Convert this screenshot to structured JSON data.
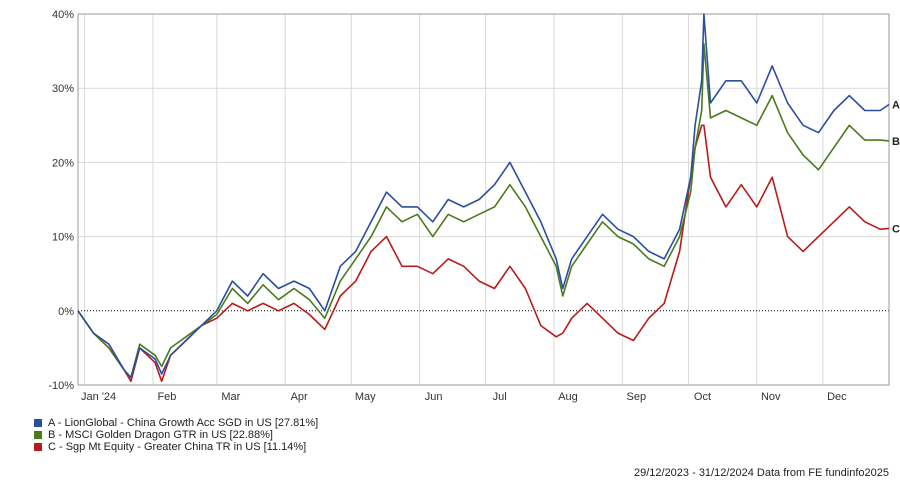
{
  "chart_data": {
    "type": "line",
    "y_tick_labels": [
      "40%",
      "30%",
      "20%",
      "10%",
      "0%",
      "-10%"
    ],
    "y_ticks": [
      40,
      30,
      20,
      10,
      0,
      -10
    ],
    "ylim": [
      -10,
      40
    ],
    "x_tick_labels": [
      "Jan '24",
      "Feb",
      "Mar",
      "Apr",
      "May",
      "Jun",
      "Jul",
      "Aug",
      "Sep",
      "Oct",
      "Nov",
      "Dec"
    ],
    "x_ticks": [
      "2024-01-01",
      "2024-02-01",
      "2024-03-01",
      "2024-04-01",
      "2024-05-01",
      "2024-06-01",
      "2024-07-01",
      "2024-08-01",
      "2024-09-01",
      "2024-10-01",
      "2024-11-01",
      "2024-12-01"
    ],
    "xlim": [
      "2023-12-29",
      "2024-12-31"
    ],
    "grid": true,
    "zero_line": "dotted",
    "legend_position": "bottom-left",
    "x": [
      "2023-12-29",
      "2024-01-05",
      "2024-01-12",
      "2024-01-19",
      "2024-01-22",
      "2024-01-26",
      "2024-02-02",
      "2024-02-05",
      "2024-02-09",
      "2024-02-16",
      "2024-02-23",
      "2024-03-01",
      "2024-03-08",
      "2024-03-15",
      "2024-03-22",
      "2024-03-29",
      "2024-04-05",
      "2024-04-12",
      "2024-04-19",
      "2024-04-26",
      "2024-05-03",
      "2024-05-10",
      "2024-05-17",
      "2024-05-24",
      "2024-05-31",
      "2024-06-07",
      "2024-06-14",
      "2024-06-21",
      "2024-06-28",
      "2024-07-05",
      "2024-07-12",
      "2024-07-19",
      "2024-07-26",
      "2024-08-02",
      "2024-08-05",
      "2024-08-09",
      "2024-08-16",
      "2024-08-23",
      "2024-08-30",
      "2024-09-06",
      "2024-09-13",
      "2024-09-20",
      "2024-09-27",
      "2024-10-02",
      "2024-10-04",
      "2024-10-07",
      "2024-10-08",
      "2024-10-11",
      "2024-10-18",
      "2024-10-25",
      "2024-11-01",
      "2024-11-08",
      "2024-11-15",
      "2024-11-22",
      "2024-11-29",
      "2024-12-06",
      "2024-12-13",
      "2024-12-20",
      "2024-12-27",
      "2024-12-31"
    ],
    "series": [
      {
        "name": "A - LionGlobal - China Growth Acc SGD in US [27.81%]",
        "label": "A",
        "color": "#2b4ea2",
        "values": [
          0,
          -3,
          -4.5,
          -8,
          -9,
          -5,
          -6.5,
          -8.5,
          -6,
          -4,
          -2,
          0,
          4,
          2,
          5,
          3,
          4,
          3,
          0,
          6,
          8,
          12,
          16,
          14,
          14,
          12,
          15,
          14,
          15,
          17,
          20,
          16,
          12,
          7,
          3,
          7,
          10,
          13,
          11,
          10,
          8,
          7,
          11,
          18,
          25,
          31,
          40,
          28,
          31,
          31,
          28,
          33,
          28,
          25,
          24,
          27,
          29,
          27,
          27,
          27.8
        ]
      },
      {
        "name": "B - MSCI Golden Dragon GTR in US [22.88%]",
        "label": "B",
        "color": "#4a7a1c",
        "values": [
          0,
          -3,
          -5,
          -8,
          -9,
          -4.5,
          -6,
          -7.5,
          -5,
          -3.5,
          -2,
          -0.5,
          3,
          1,
          3.5,
          1.5,
          3,
          1.5,
          -1,
          4,
          7,
          10,
          14,
          12,
          13,
          10,
          13,
          12,
          13,
          14,
          17,
          14,
          10,
          6,
          2,
          6,
          9,
          12,
          10,
          9,
          7,
          6,
          10,
          16,
          22,
          27,
          36,
          26,
          27,
          26,
          25,
          29,
          24,
          21,
          19,
          22,
          25,
          23,
          23,
          22.9
        ]
      },
      {
        "name": "C - Sgp Mt Equity - Greater China TR in US [11.14%]",
        "label": "C",
        "color": "#b71c1c",
        "values": [
          0,
          -3,
          -5,
          -8,
          -9.5,
          -5,
          -7,
          -9.5,
          -6,
          -4,
          -2,
          -1,
          1,
          0,
          1,
          0,
          1,
          -0.5,
          -2.5,
          2,
          4,
          8,
          10,
          6,
          6,
          5,
          7,
          6,
          4,
          3,
          6,
          3,
          -2,
          -3.5,
          -3,
          -1,
          1,
          -1,
          -3,
          -4,
          -1,
          1,
          8,
          18,
          22,
          25,
          25,
          18,
          14,
          17,
          14,
          18,
          10,
          8,
          10,
          12,
          14,
          12,
          11,
          11.1
        ]
      }
    ]
  },
  "legend": {
    "items": [
      {
        "label": "A - LionGlobal - China Growth Acc SGD in US [27.81%]",
        "color": "#2b4ea2"
      },
      {
        "label": "B - MSCI Golden Dragon GTR in US [22.88%]",
        "color": "#4a7a1c"
      },
      {
        "label": "C - Sgp Mt Equity - Greater China TR in US [11.14%]",
        "color": "#b71c1c"
      }
    ]
  },
  "footer": {
    "text": "29/12/2023 - 31/12/2024 Data from FE fundinfo2025"
  }
}
